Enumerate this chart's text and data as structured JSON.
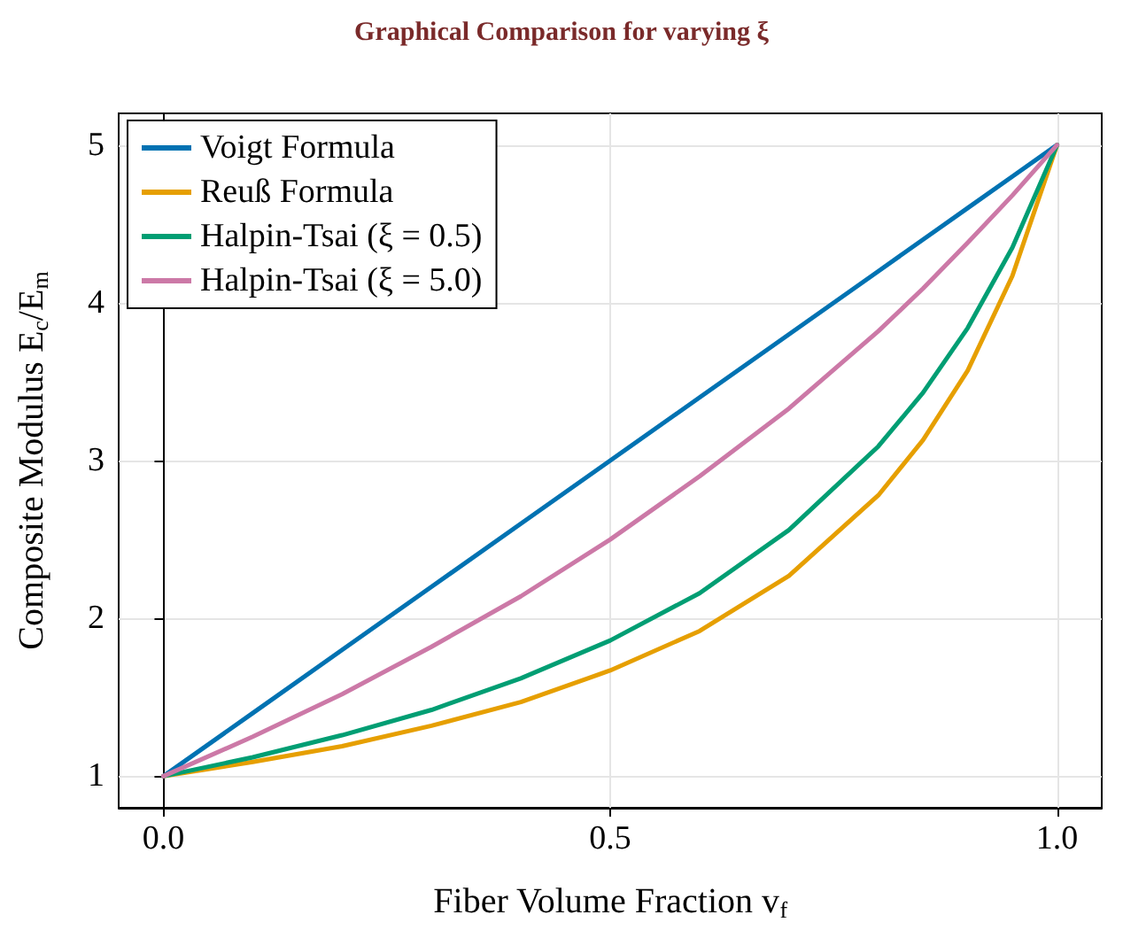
{
  "chart_data": {
    "type": "line",
    "title": "Graphical Comparison for varying ξ",
    "xlabel": "Fiber Volume Fraction v$_{f}$",
    "ylabel": "Composite Modulus E$_{c}$/E$_{m}$",
    "x": [
      0,
      0.1,
      0.2,
      0.3,
      0.4,
      0.5,
      0.6,
      0.7,
      0.8,
      0.85,
      0.9,
      0.95,
      1
    ],
    "series": [
      {
        "name": "Voigt Formula",
        "color": "#0072b2",
        "values": [
          1,
          1.4,
          1.8,
          2.2,
          2.6,
          3,
          3.4,
          3.8,
          4.2,
          4.4,
          4.6,
          4.8,
          5
        ]
      },
      {
        "name": "Reuß Formula",
        "color": "#e69f00",
        "values": [
          1,
          1.09,
          1.19,
          1.32,
          1.47,
          1.67,
          1.92,
          2.27,
          2.78,
          3.13,
          3.57,
          4.17,
          5
        ]
      },
      {
        "name": "Halpin-Tsai (ξ = 0.5)",
        "color": "#009e73",
        "values": [
          1,
          1.12,
          1.26,
          1.42,
          1.62,
          1.86,
          2.16,
          2.56,
          3.09,
          3.43,
          3.84,
          4.35,
          5
        ]
      },
      {
        "name": "Halpin-Tsai (ξ = 5.0)",
        "color": "#cc79a7",
        "values": [
          1,
          1.25,
          1.52,
          1.82,
          2.14,
          2.5,
          2.9,
          3.33,
          3.82,
          4.09,
          4.38,
          4.68,
          5
        ]
      }
    ],
    "xlim": [
      -0.05,
      1.05
    ],
    "xticks": [
      {
        "value": 0,
        "label": "0.0"
      },
      0.5,
      {
        "value": 1,
        "label": "1.0"
      }
    ],
    "ylim": [
      0.8,
      5.2
    ],
    "yticks": [
      1,
      2,
      3,
      4,
      5
    ],
    "grid": true,
    "legend": "top left",
    "marker": "none",
    "line_style": "solid"
  }
}
